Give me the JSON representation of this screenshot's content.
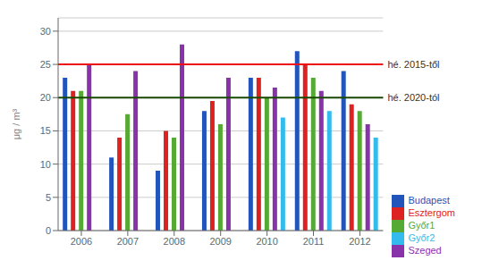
{
  "chart_data": {
    "type": "bar",
    "categories": [
      "2006",
      "2007",
      "2008",
      "2009",
      "2010",
      "2011",
      "2012"
    ],
    "series": [
      {
        "name": "Budapest",
        "color": "#2255bb",
        "values": [
          23.0,
          11.0,
          9.0,
          18.0,
          23.0,
          27.0,
          24.0
        ]
      },
      {
        "name": "Esztergom",
        "color": "#dd2222",
        "values": [
          21.0,
          14.0,
          15.0,
          19.5,
          23.0,
          25.0,
          19.0
        ]
      },
      {
        "name": "Győr1",
        "color": "#55aa33",
        "values": [
          21.0,
          17.5,
          14.0,
          16.0,
          20.0,
          23.0,
          18.0
        ]
      },
      {
        "name": "Szeged",
        "color": "#8833aa",
        "values": [
          25.0,
          24.0,
          28.0,
          23.0,
          21.5,
          21.0,
          16.0
        ]
      },
      {
        "name": "Győr2",
        "color": "#33bbee",
        "values": [
          null,
          null,
          null,
          null,
          17.0,
          18.0,
          14.0
        ]
      }
    ],
    "hlines": [
      {
        "y": 25,
        "color": "#ee1111",
        "label": "hé. 2015-től"
      },
      {
        "y": 20,
        "color": "#1a4a00",
        "label": "hé. 2020-tól"
      }
    ],
    "y_label": "μg / m³",
    "ylim": [
      0,
      32
    ],
    "yticks": [
      0,
      5,
      10,
      15,
      20,
      25,
      30
    ],
    "grid": true,
    "legend": "right"
  }
}
